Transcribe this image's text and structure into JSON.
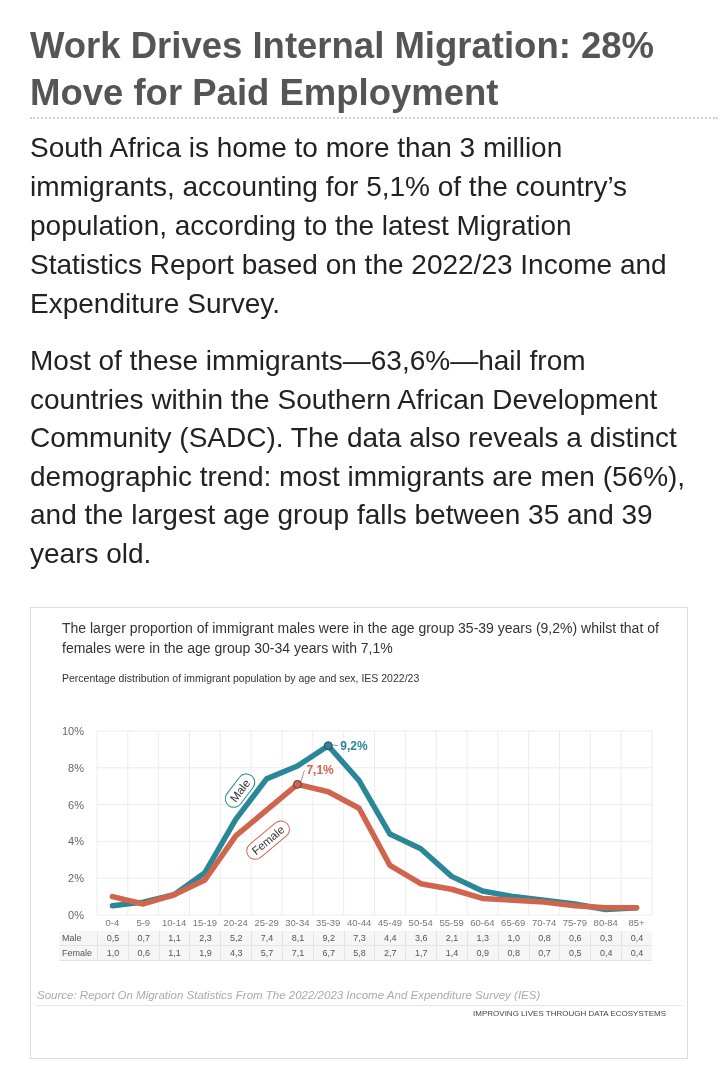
{
  "chart_data": {
    "type": "line",
    "title": "The larger proportion of immigrant males were in the age group 35-39 years (9,2%) whilst that of females were in the age group 30-34 years with 7,1%",
    "subtitle": "Percentage distribution of immigrant population by age and sex, IES 2022/23",
    "categories": [
      "0-4",
      "5-9",
      "10-14",
      "15-19",
      "20-24",
      "25-29",
      "30-34",
      "35-39",
      "40-44",
      "45-49",
      "50-54",
      "55-59",
      "60-64",
      "65-69",
      "70-74",
      "75-79",
      "80-84",
      "85+"
    ],
    "series": [
      {
        "name": "Male",
        "color": "#2a8797",
        "values": [
          0.5,
          0.7,
          1.1,
          2.3,
          5.2,
          7.4,
          8.1,
          9.2,
          7.3,
          4.4,
          3.6,
          2.1,
          1.3,
          1.0,
          0.8,
          0.6,
          0.3,
          0.4
        ],
        "value_labels": [
          "0,5",
          "0,7",
          "1,1",
          "2,3",
          "5,2",
          "7,4",
          "8,1",
          "9,2",
          "7,3",
          "4,4",
          "3,6",
          "2,1",
          "1,3",
          "1,0",
          "0,8",
          "0,6",
          "0,3",
          "0,4"
        ]
      },
      {
        "name": "Female",
        "color": "#d0654e",
        "values": [
          1.0,
          0.6,
          1.1,
          1.9,
          4.3,
          5.7,
          7.1,
          6.7,
          5.8,
          2.7,
          1.7,
          1.4,
          0.9,
          0.8,
          0.7,
          0.5,
          0.4,
          0.4
        ],
        "value_labels": [
          "1,0",
          "0,6",
          "1,1",
          "1,9",
          "4,3",
          "5,7",
          "7,1",
          "6,7",
          "5,8",
          "2,7",
          "1,7",
          "1,4",
          "0,9",
          "0,8",
          "0,7",
          "0,5",
          "0,4",
          "0,4"
        ]
      }
    ],
    "ylim": [
      0,
      10
    ],
    "yticks": [
      {
        "value": 0,
        "label": "0%"
      },
      {
        "value": 2,
        "label": "2%"
      },
      {
        "value": 4,
        "label": "4%"
      },
      {
        "value": 6,
        "label": "6%"
      },
      {
        "value": 8,
        "label": "8%"
      },
      {
        "value": 10,
        "label": "10%"
      }
    ],
    "grid": true,
    "annotations": [
      "Work Drives Internal Migration: 28% Move for Paid Employment",
      "South Africa is home to more than 3 million immigrants, accounting for 5,1% of the country’s population, according to the latest Migration Statistics Report based on the 2022/23 Income and Expenditure Survey.",
      "Most of these immigrants—63,6%—hail from countries within the Southern African Development Community (SADC). The data also reveals a distinct demographic trend: most immigrants are men (56%), and the largest age group falls between 35 and 39 years old.",
      {
        "text": "9,2%",
        "x": "35-39",
        "y": 9.2
      },
      {
        "text": "7,1%",
        "x": "30-34",
        "y": 7.1
      },
      "Source: Report On Migration Statistics From The 2022/2023 Income And Expenditure Survey (IES)",
      "IMPROVING LIVES THROUGH DATA ECOSYSTEMS"
    ]
  }
}
